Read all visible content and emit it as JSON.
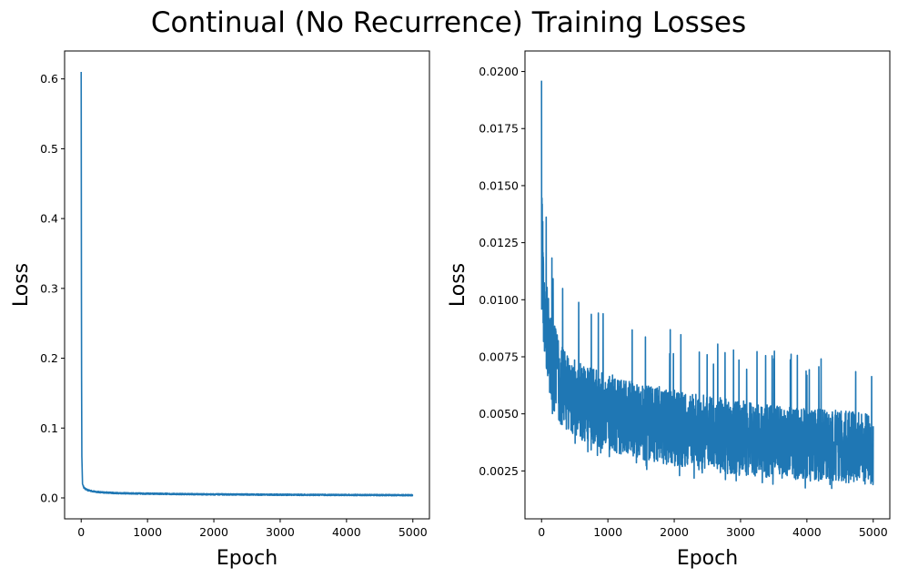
{
  "figure": {
    "title": "Continual (No Recurrence) Training Losses",
    "line_color": "#1f77b4"
  },
  "chart_data": [
    {
      "type": "line",
      "title": "",
      "xlabel": "Epoch",
      "ylabel": "Loss",
      "xlim": [
        -250,
        5250
      ],
      "ylim": [
        -0.03,
        0.64
      ],
      "xticks": [
        0,
        1000,
        2000,
        3000,
        4000,
        5000
      ],
      "yticks": [
        0.0,
        0.1,
        0.2,
        0.3,
        0.4,
        0.5,
        0.6
      ],
      "ytick_labels": [
        "0.0",
        "0.1",
        "0.2",
        "0.3",
        "0.4",
        "0.5",
        "0.6"
      ],
      "grid": false,
      "legend": "none",
      "series": [
        {
          "x": [
            0,
            5,
            10,
            20,
            40,
            60,
            100,
            150,
            200,
            300,
            400,
            500,
            700,
            1000,
            1500,
            2000,
            2500,
            3000,
            3500,
            4000,
            4500,
            5000
          ],
          "y": [
            0.61,
            0.2,
            0.06,
            0.02,
            0.015,
            0.013,
            0.011,
            0.01,
            0.009,
            0.008,
            0.0075,
            0.007,
            0.0065,
            0.006,
            0.0055,
            0.005,
            0.0048,
            0.0045,
            0.0043,
            0.0042,
            0.004,
            0.0038
          ],
          "noise_band": 0.002
        }
      ]
    },
    {
      "type": "line",
      "title": "",
      "xlabel": "Epoch",
      "ylabel": "Loss",
      "xlim": [
        -250,
        5250
      ],
      "ylim": [
        0.0004,
        0.0209
      ],
      "xticks": [
        0,
        1000,
        2000,
        3000,
        4000,
        5000
      ],
      "yticks": [
        0.0025,
        0.005,
        0.0075,
        0.01,
        0.0125,
        0.015,
        0.0175,
        0.02
      ],
      "ytick_labels": [
        "0.0025",
        "0.0050",
        "0.0075",
        "0.0100",
        "0.0125",
        "0.0150",
        "0.0175",
        "0.0200"
      ],
      "grid": false,
      "legend": "none",
      "series": [
        {
          "x": [
            0,
            10,
            30,
            60,
            100,
            150,
            200,
            300,
            400,
            500,
            700,
            1000,
            1500,
            2000,
            2500,
            3000,
            3500,
            4000,
            4500,
            5000
          ],
          "y_low": [
            0.0095,
            0.009,
            0.008,
            0.007,
            0.0062,
            0.0055,
            0.005,
            0.0045,
            0.0042,
            0.004,
            0.0037,
            0.0034,
            0.003,
            0.0027,
            0.0025,
            0.0023,
            0.0022,
            0.0021,
            0.002,
            0.0019
          ],
          "y_high": [
            0.0196,
            0.0165,
            0.0145,
            0.013,
            0.012,
            0.011,
            0.0105,
            0.0095,
            0.009,
            0.0088,
            0.0085,
            0.0082,
            0.0078,
            0.0075,
            0.0072,
            0.007,
            0.0067,
            0.0066,
            0.0065,
            0.0063
          ],
          "peak": 0.0196
        }
      ]
    }
  ]
}
